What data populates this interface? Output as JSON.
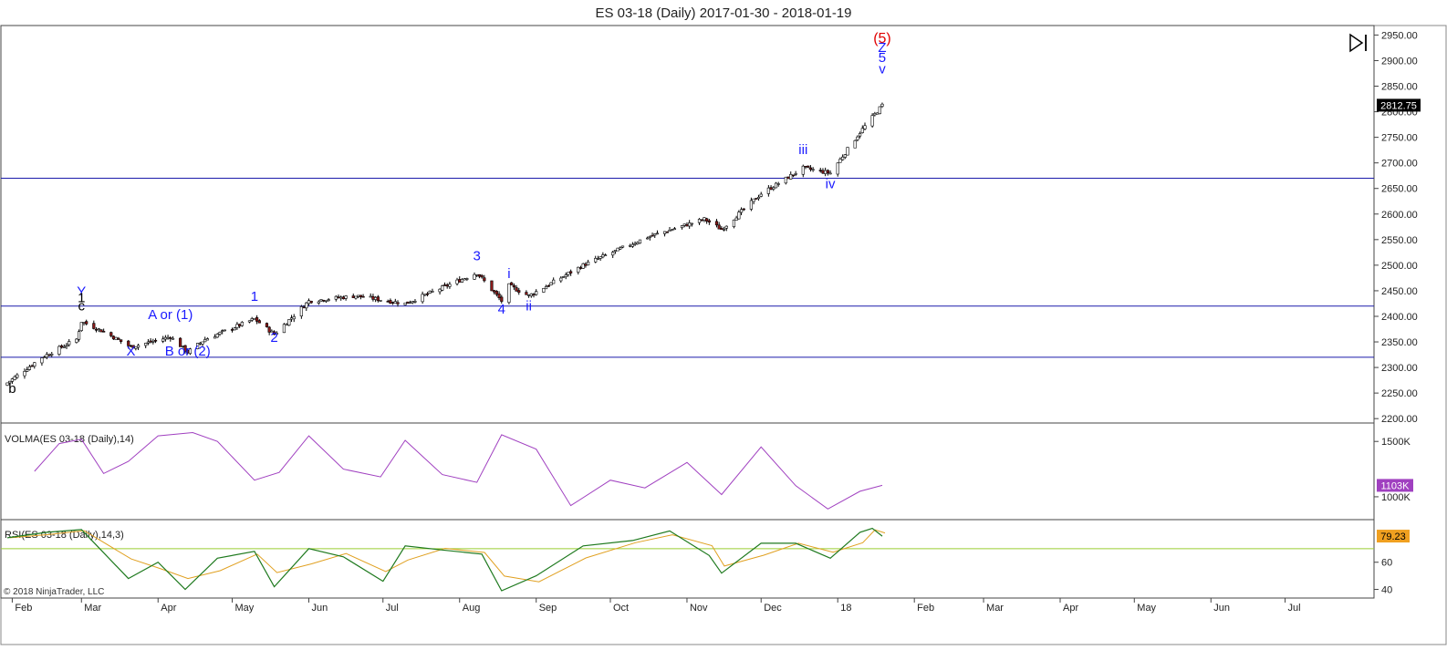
{
  "window": {
    "title": "ES 03-18 (Daily)  2017-01-30 - 2018-01-19"
  },
  "colors": {
    "price_candle": "#000000",
    "down_candle_fill": "#8b1a1a",
    "up_candle_fill": "#ffffff",
    "hline": "#1a1aaa",
    "volma_line": "#a040c0",
    "rsi_line": "#1f7a1f",
    "rsi_avg_line": "#e0a020",
    "rsi_hline": "#9acd32",
    "wave_blue": "#1a1aff",
    "wave_red": "#e00000",
    "price_badge_bg": "#000000",
    "rsi_badge_bg": "#f0a020"
  },
  "toolbar": {
    "scroll_end_icon": "skip-to-end-icon"
  },
  "price_panel": {
    "y_ticks": [
      "2950.00",
      "2900.00",
      "2850.00",
      "2800.00",
      "2750.00",
      "2700.00",
      "2650.00",
      "2600.00",
      "2550.00",
      "2500.00",
      "2450.00",
      "2400.00",
      "2350.00",
      "2300.00",
      "2250.00",
      "2200.00"
    ],
    "last_price": "2812.75",
    "horizontal_levels": [
      2670,
      2420,
      2320
    ],
    "labels": [
      {
        "text": "(5)",
        "date": "2018-01-19",
        "price": 2935,
        "color": "red"
      },
      {
        "text": "Z",
        "date": "2018-01-19",
        "price": 2917,
        "color": "blue"
      },
      {
        "text": "5",
        "date": "2018-01-19",
        "price": 2897,
        "color": "blue"
      },
      {
        "text": "v",
        "date": "2018-01-19",
        "price": 2875,
        "color": "blue"
      },
      {
        "text": "iii",
        "date": "2017-12-18",
        "price": 2717,
        "color": "blue"
      },
      {
        "text": "iv",
        "date": "2017-12-29",
        "price": 2650,
        "color": "blue"
      },
      {
        "text": "3",
        "date": "2017-08-08",
        "price": 2510,
        "color": "blue"
      },
      {
        "text": "i",
        "date": "2017-08-21",
        "price": 2475,
        "color": "blue"
      },
      {
        "text": "ii",
        "date": "2017-08-29",
        "price": 2412,
        "color": "blue"
      },
      {
        "text": "4",
        "date": "2017-08-18",
        "price": 2405,
        "color": "blue"
      },
      {
        "text": "1",
        "date": "2017-05-10",
        "price": 2430,
        "color": "blue"
      },
      {
        "text": "2",
        "date": "2017-05-18",
        "price": 2350,
        "color": "blue"
      },
      {
        "text": "Y",
        "date": "2017-03-01",
        "price": 2440,
        "color": "blue"
      },
      {
        "text": "1",
        "date": "2017-03-01",
        "price": 2428,
        "color": "black"
      },
      {
        "text": "c",
        "date": "2017-03-01",
        "price": 2412,
        "color": "black"
      },
      {
        "text": "A or (1)",
        "date": "2017-04-06",
        "price": 2395,
        "color": "blue"
      },
      {
        "text": "X",
        "date": "2017-03-21",
        "price": 2323,
        "color": "blue"
      },
      {
        "text": "B or (2)",
        "date": "2017-04-13",
        "price": 2323,
        "color": "blue"
      },
      {
        "text": "b",
        "date": "2017-02-01",
        "price": 2250,
        "color": "black"
      }
    ]
  },
  "volma_panel": {
    "title": "VOLMA(ES 03-18 (Daily),14)",
    "y_ticks": [
      "1500K",
      "1000K"
    ],
    "last_value": "1103K"
  },
  "rsi_panel": {
    "title": "RSI(ES 03-18 (Daily),14,3)",
    "y_ticks": [
      "60",
      "40"
    ],
    "last_value": "79.23",
    "hline_value": 70
  },
  "x_axis": {
    "labels": [
      "Feb",
      "Mar",
      "Apr",
      "May",
      "Jun",
      "Jul",
      "Aug",
      "Sep",
      "Oct",
      "Nov",
      "Dec",
      "18",
      "Feb",
      "Mar",
      "Apr",
      "May",
      "Jun",
      "Jul"
    ],
    "label_dates": [
      "2017-02-01",
      "2017-03-01",
      "2017-04-01",
      "2017-05-01",
      "2017-06-01",
      "2017-07-01",
      "2017-08-01",
      "2017-09-01",
      "2017-10-01",
      "2017-11-01",
      "2017-12-01",
      "2018-01-01",
      "2018-02-01",
      "2018-03-01",
      "2018-04-01",
      "2018-05-01",
      "2018-06-01",
      "2018-07-01"
    ]
  },
  "footer": {
    "copyright": "© 2018 NinjaTrader, LLC"
  },
  "chart_data": [
    {
      "type": "candlestick",
      "name": "ES 03-18 (Daily)",
      "ylim": [
        2195,
        2965
      ],
      "x": [
        "2017-01-30",
        "2017-02-13",
        "2017-02-27",
        "2017-03-01",
        "2017-03-10",
        "2017-03-21",
        "2017-04-06",
        "2017-04-13",
        "2017-04-20",
        "2017-05-10",
        "2017-05-18",
        "2017-06-01",
        "2017-06-20",
        "2017-07-10",
        "2017-08-08",
        "2017-08-18",
        "2017-08-21",
        "2017-08-29",
        "2017-09-20",
        "2017-10-16",
        "2017-11-08",
        "2017-11-15",
        "2017-12-01",
        "2017-12-08",
        "2017-12-18",
        "2017-12-29",
        "2018-01-10",
        "2018-01-19"
      ],
      "close": [
        2270,
        2320,
        2355,
        2390,
        2370,
        2340,
        2360,
        2330,
        2355,
        2395,
        2365,
        2430,
        2440,
        2425,
        2485,
        2430,
        2460,
        2440,
        2500,
        2555,
        2590,
        2570,
        2640,
        2660,
        2690,
        2680,
        2760,
        2812.75
      ]
    },
    {
      "type": "line",
      "name": "VOLMA(ES 03-18 (Daily),14)",
      "ylim": [
        810000,
        1650000
      ],
      "x": [
        "2017-02-10",
        "2017-02-20",
        "2017-03-01",
        "2017-03-10",
        "2017-03-20",
        "2017-04-01",
        "2017-04-15",
        "2017-04-25",
        "2017-05-10",
        "2017-05-20",
        "2017-06-01",
        "2017-06-15",
        "2017-06-30",
        "2017-07-10",
        "2017-07-25",
        "2017-08-08",
        "2017-08-18",
        "2017-09-01",
        "2017-09-15",
        "2017-10-01",
        "2017-10-15",
        "2017-11-01",
        "2017-11-15",
        "2017-12-01",
        "2017-12-15",
        "2017-12-28",
        "2018-01-10",
        "2018-01-19"
      ],
      "values": [
        1230000,
        1480000,
        1520000,
        1210000,
        1320000,
        1550000,
        1580000,
        1500000,
        1150000,
        1220000,
        1550000,
        1250000,
        1180000,
        1510000,
        1200000,
        1130000,
        1560000,
        1430000,
        920000,
        1150000,
        1080000,
        1310000,
        1020000,
        1450000,
        1100000,
        890000,
        1050000,
        1103000
      ]
    },
    {
      "type": "line",
      "name": "RSI(ES 03-18 (Daily),14,3)",
      "ylim": [
        35,
        90
      ],
      "x": [
        "2017-01-30",
        "2017-02-15",
        "2017-03-01",
        "2017-03-20",
        "2017-04-01",
        "2017-04-12",
        "2017-04-25",
        "2017-05-10",
        "2017-05-18",
        "2017-06-01",
        "2017-06-15",
        "2017-07-01",
        "2017-07-10",
        "2017-07-25",
        "2017-08-10",
        "2017-08-18",
        "2017-09-01",
        "2017-09-20",
        "2017-10-10",
        "2017-10-25",
        "2017-11-10",
        "2017-11-15",
        "2017-12-01",
        "2017-12-15",
        "2017-12-29",
        "2018-01-10",
        "2018-01-15",
        "2018-01-19"
      ],
      "values": [
        78,
        82,
        84,
        48,
        60,
        40,
        63,
        68,
        42,
        70,
        64,
        46,
        72,
        69,
        66,
        39,
        50,
        72,
        76,
        83,
        65,
        52,
        74,
        74,
        63,
        82,
        85,
        79.23
      ]
    }
  ]
}
